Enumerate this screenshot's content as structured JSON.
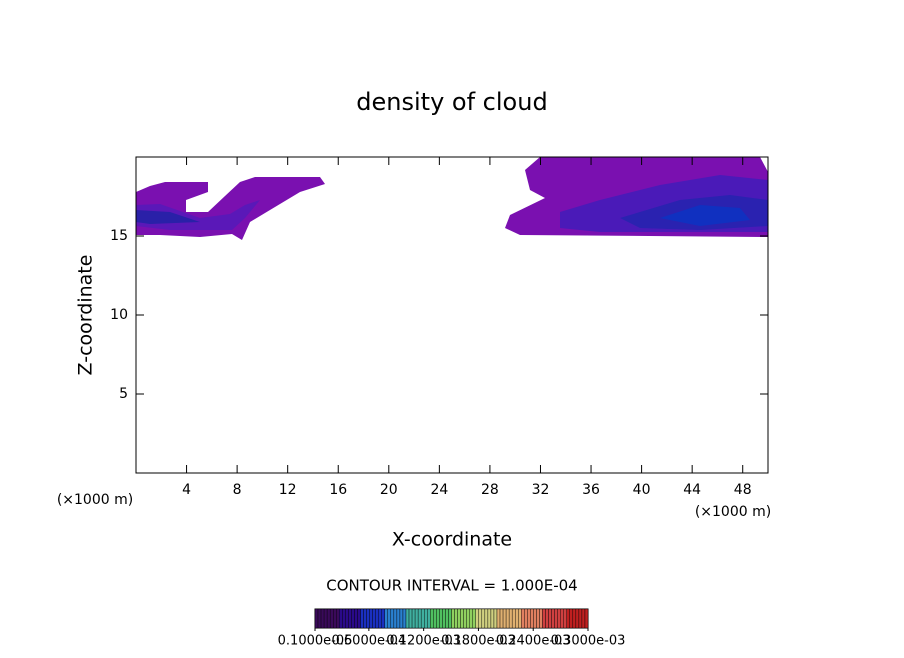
{
  "chart_data": {
    "type": "contour",
    "title": "density of cloud",
    "xlabel": "X-coordinate",
    "ylabel": "Z-coordinate",
    "x_unit": "(×1000 m)",
    "xlim": [
      0,
      50
    ],
    "ylim": [
      0,
      20
    ],
    "xticks": [
      4,
      8,
      12,
      16,
      20,
      24,
      28,
      32,
      36,
      40,
      44,
      48
    ],
    "yticks": [
      5,
      10,
      15
    ],
    "contour_label": "CONTOUR INTERVAL = 1.000E-04",
    "colorbar": {
      "colors": [
        "#3a0a5a",
        "#2a0a8a",
        "#1a30c0",
        "#2a80d0",
        "#40b0a0",
        "#50c060",
        "#90d060",
        "#d0d080",
        "#e0b070",
        "#e08060",
        "#d04040",
        "#c02020"
      ],
      "ticks": [
        {
          "value": 1e-06,
          "label": "0.1000e-05"
        },
        {
          "value": 6e-05,
          "label": "0.6000e-04"
        },
        {
          "value": 0.00012,
          "label": "0.1200e-03"
        },
        {
          "value": 0.00018,
          "label": "0.1800e-03"
        },
        {
          "value": 0.00024,
          "label": "0.2400e-03"
        },
        {
          "value": 0.0003,
          "label": "0.3000e-03"
        }
      ],
      "lim": [
        1e-06,
        0.0003
      ]
    }
  }
}
